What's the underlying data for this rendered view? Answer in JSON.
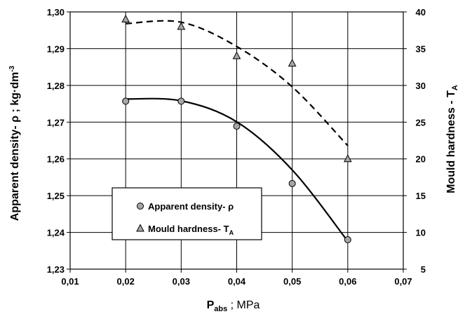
{
  "chart_data": {
    "type": "scatter",
    "x": [
      0.02,
      0.03,
      0.04,
      0.05,
      0.06
    ],
    "xlim": [
      0.01,
      0.07
    ],
    "xticks": [
      "0,01",
      "0,02",
      "0,03",
      "0,04",
      "0,05",
      "0,06",
      "0,07"
    ],
    "xlabel": {
      "main": "P",
      "sub": "abs",
      "rest": " ; MPa"
    },
    "ylim_left": [
      1.23,
      1.3
    ],
    "yticks_left": [
      "1,23",
      "1,24",
      "1,25",
      "1,26",
      "1,27",
      "1,28",
      "1,29",
      "1,30"
    ],
    "ylabel_left": {
      "main": "Apparent density- ρ ; kg·dm",
      "sup": "-3"
    },
    "ylim_right": [
      5,
      40
    ],
    "yticks_right": [
      "5",
      "10",
      "15",
      "20",
      "25",
      "30",
      "35",
      "40"
    ],
    "ylabel_right": {
      "main": "Mould hardness - T",
      "sub": "A"
    },
    "grid": true,
    "legend": "lower-left inside plot",
    "series": [
      {
        "name": {
          "main": "Apparent density- ρ",
          "sub": ""
        },
        "axis": "left",
        "marker": "circle",
        "values": [
          1.2757,
          1.2757,
          1.2689,
          1.2533,
          1.238
        ],
        "trendline": {
          "kind": "polynomial-2",
          "line": "solid",
          "points": [
            [
              0.02,
              1.2763
            ],
            [
              0.03,
              1.2758
            ],
            [
              0.04,
              1.2701
            ],
            [
              0.05,
              1.257
            ],
            [
              0.06,
              1.2376
            ]
          ]
        }
      },
      {
        "name": {
          "main": "Mould hardness- T",
          "sub": "A"
        },
        "axis": "right",
        "marker": "triangle",
        "values": [
          39,
          38,
          34,
          33,
          20
        ],
        "trendline": {
          "kind": "polynomial-2",
          "line": "dashed",
          "points": [
            [
              0.02,
              38.4
            ],
            [
              0.03,
              38.6
            ],
            [
              0.04,
              35.3
            ],
            [
              0.05,
              29.8
            ],
            [
              0.06,
              21.8
            ]
          ]
        }
      }
    ],
    "colors": {
      "marker_fill": "#a6a6a6",
      "line": "#000000",
      "grid": "#000000",
      "background": "#ffffff"
    }
  }
}
